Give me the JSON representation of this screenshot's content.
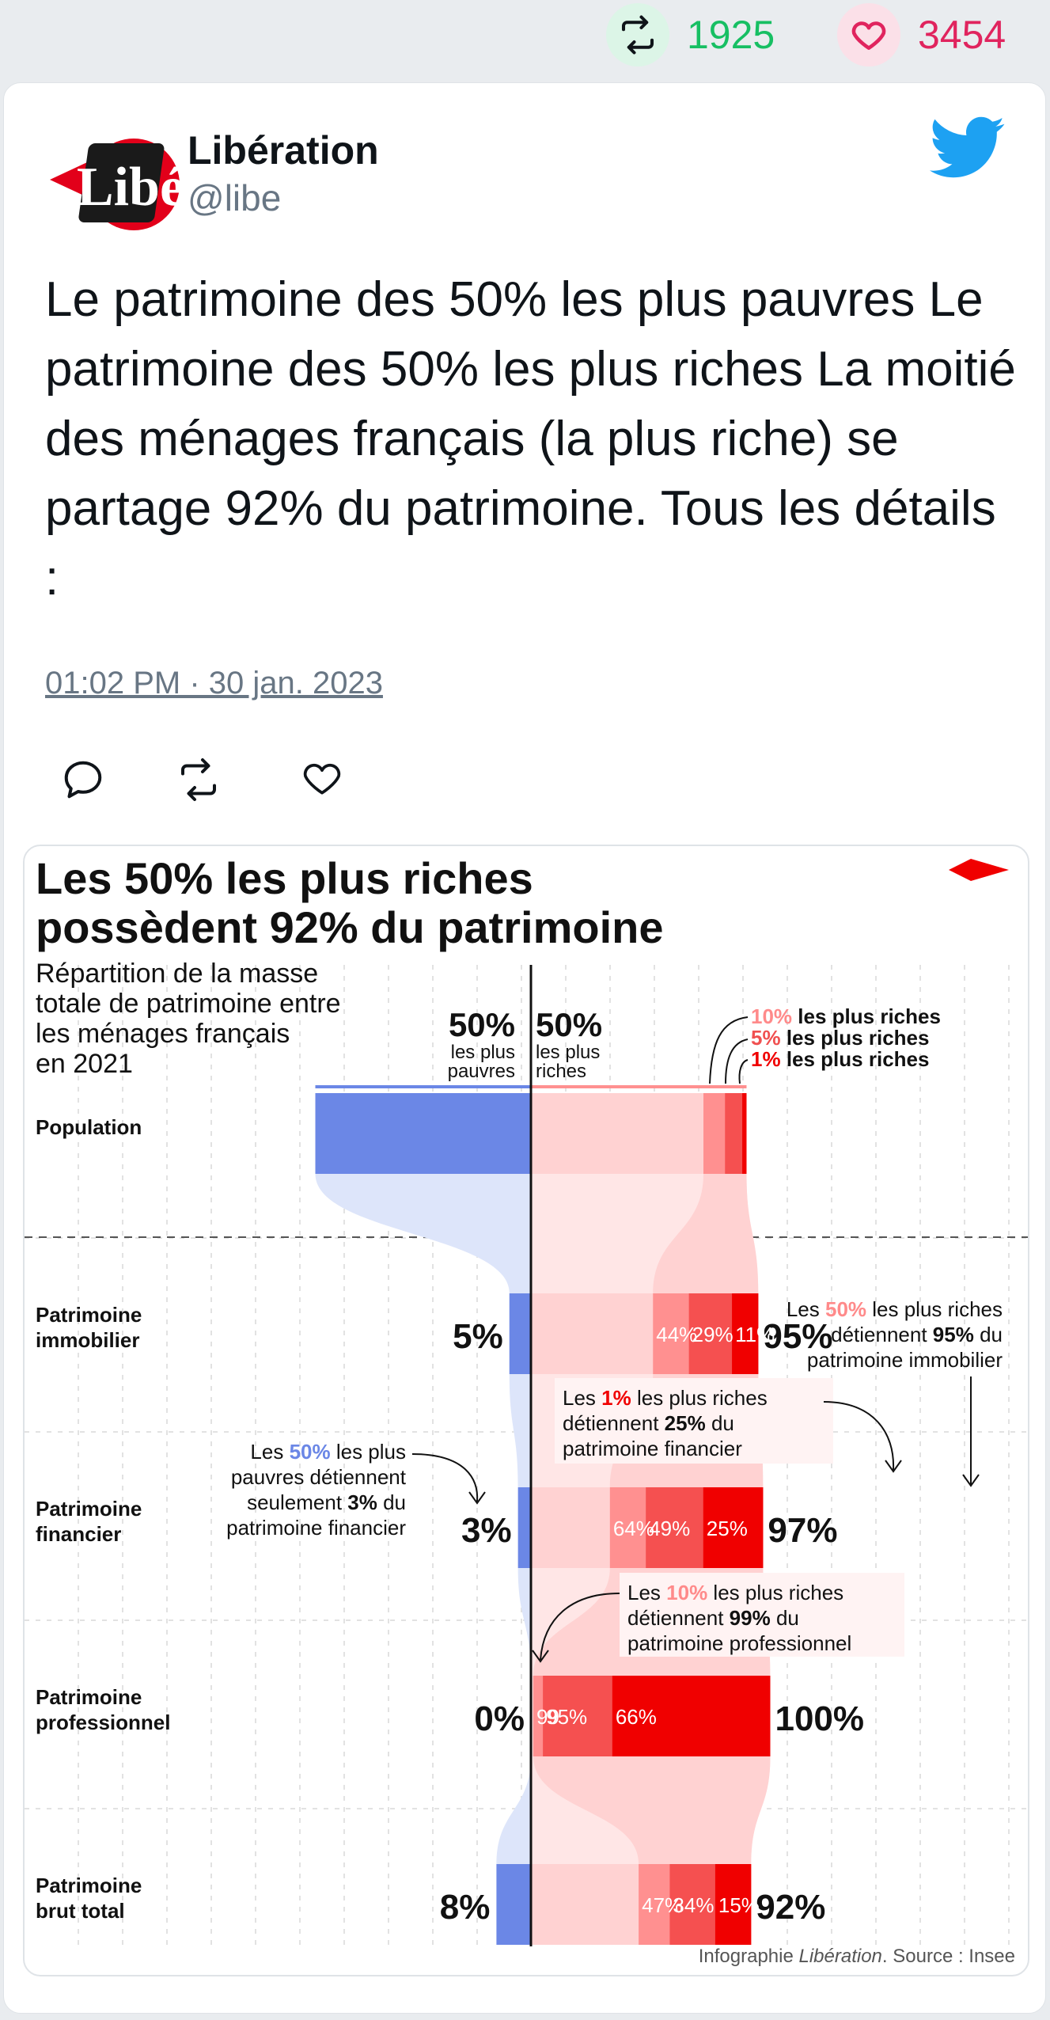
{
  "stats": {
    "retweets": "1925",
    "likes": "3454"
  },
  "author": {
    "name": "Libération",
    "handle": "@libe",
    "logo_text": "Libé"
  },
  "tweet": {
    "text": "Le patrimoine des 50% les plus pauvres Le patrimoine des 50% les plus riches La moitié des ménages français (la plus riche) se partage 92% du patrimoine. Tous les détails :",
    "timestamp": "01:02 PM · 30 jan. 2023"
  },
  "icons": {
    "retweet": "retweet-icon",
    "like": "heart-icon",
    "reply": "reply-icon",
    "brand": "twitter-bird-icon",
    "chart_brand": "libe-diamond-icon"
  },
  "colors": {
    "retweet": "#17bf63",
    "like": "#e0245e",
    "twitter": "#1da1f2",
    "poor": "#6b87e6",
    "rich": "#f00000"
  },
  "chart_data": {
    "type": "bar",
    "title_line1": "Les 50% les plus riches",
    "title_line2": "possèdent 92% du patrimoine",
    "subtitle_lines": [
      "Répartition de la masse",
      "totale de patrimoine entre",
      "les ménages français",
      "en 2021"
    ],
    "header_poor": {
      "value": "50%",
      "line1": "les plus",
      "line2": "pauvres"
    },
    "header_rich": {
      "value": "50%",
      "line1": "les plus",
      "line2": "riches"
    },
    "top_legend": [
      {
        "pct": "10%",
        "label": "les plus riches"
      },
      {
        "pct": "5%",
        "label": "les plus riches"
      },
      {
        "pct": "1%",
        "label": "les plus riches"
      }
    ],
    "categories": [
      "Population",
      "Patrimoine immobilier",
      "Patrimoine financier",
      "Patrimoine professionnel",
      "Patrimoine brut total"
    ],
    "rows": [
      {
        "label_lines": [
          "Population"
        ],
        "poor": 50,
        "rich": 50,
        "top10": 10,
        "top5": 5,
        "top1": 1
      },
      {
        "label_lines": [
          "Patrimoine",
          "immobilier"
        ],
        "poor": 5,
        "rich": 95,
        "top10": 44,
        "top5": 29,
        "top1": 11,
        "poor_label": "5%",
        "rich_label": "95%",
        "seg_labels": [
          "44%",
          "29%",
          "11%"
        ]
      },
      {
        "label_lines": [
          "Patrimoine",
          "financier"
        ],
        "poor": 3,
        "rich": 97,
        "top10": 64,
        "top5": 49,
        "top1": 25,
        "poor_label": "3%",
        "rich_label": "97%",
        "seg_labels": [
          "64%",
          "49%",
          "25%"
        ]
      },
      {
        "label_lines": [
          "Patrimoine",
          "professionnel"
        ],
        "poor": 0,
        "rich": 100,
        "top10": 99,
        "top5": 95,
        "top1": 66,
        "poor_label": "0%",
        "rich_label": "100%",
        "seg_labels": [
          "99",
          "95%",
          "66%"
        ]
      },
      {
        "label_lines": [
          "Patrimoine",
          "brut total"
        ],
        "poor": 8,
        "rich": 92,
        "top10": 47,
        "top5": 34,
        "top1": 15,
        "poor_label": "8%",
        "rich_label": "92%",
        "seg_labels": [
          "47%",
          "34%",
          "15%"
        ]
      }
    ],
    "annotations": {
      "immo": {
        "pre": "Les ",
        "pct": "50%",
        "post": " les plus riches",
        "line2_pre": "détiennent ",
        "line2_bold": "95%",
        "line2_post": " du",
        "line3": "patrimoine immobilier"
      },
      "fin_rich": {
        "pre": "Les ",
        "pct": "1%",
        "post": " les plus riches",
        "line2_pre": "détiennent ",
        "line2_bold": "25%",
        "line2_post": " du",
        "line3": "patrimoine financier"
      },
      "fin_poor": {
        "pre": "Les ",
        "pct": "50%",
        "post": " les plus",
        "line2": "pauvres détiennent",
        "line3_pre": "seulement ",
        "line3_bold": "3%",
        "line3_post": " du",
        "line4": "patrimoine financier"
      },
      "pro": {
        "pre": "Les ",
        "pct": "10%",
        "post": " les plus riches",
        "line2_pre": "détiennent ",
        "line2_bold": "99%",
        "line2_post": " du",
        "line3": "patrimoine professionnel"
      }
    },
    "source_pre": "Infographie ",
    "source_em": "Libération",
    "source_post": ". Source : Insee"
  }
}
